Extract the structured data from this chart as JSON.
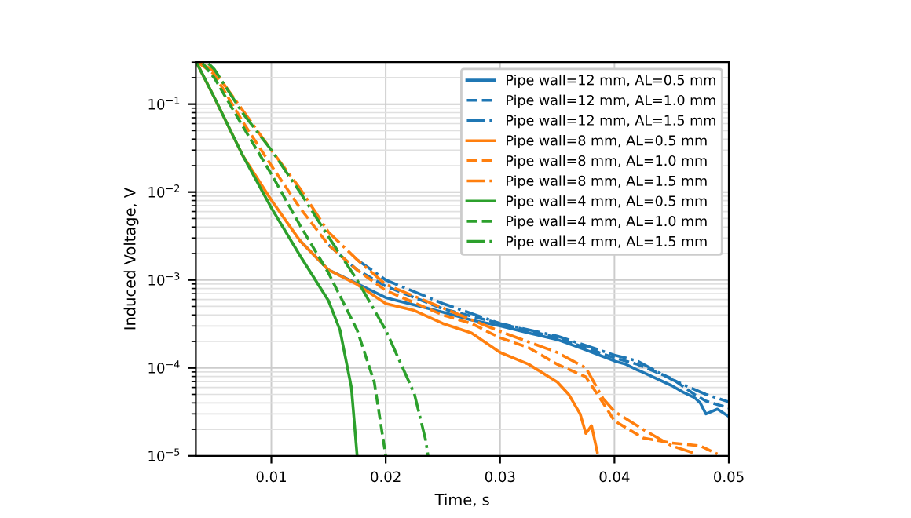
{
  "chart_data": {
    "type": "line",
    "xlabel": "Time, s",
    "ylabel": "Induced Voltage, V",
    "log": "y",
    "grid": true,
    "legend": "top right",
    "xlim": [
      0.0034,
      0.05
    ],
    "xticks": [
      0.01,
      0.02,
      0.03,
      0.04,
      0.05
    ],
    "ylim": [
      1e-05,
      0.3
    ],
    "yticks": [
      {
        "value": 1e-05,
        "label": "10$^{−5}$"
      },
      {
        "value": 0.0001,
        "label": "10$^{−4}$"
      },
      {
        "value": 0.001,
        "label": "10$^{−3}$"
      },
      {
        "value": 0.01,
        "label": "10$^{−2}$"
      },
      {
        "value": 0.1,
        "label": "10$^{−1}$"
      }
    ],
    "series": [
      {
        "name": "Pipe wall=12 mm, AL=0.5 mm",
        "color": "#1f77b4",
        "line_style": "solid",
        "x": [
          0.0125,
          0.015,
          0.0175,
          0.02,
          0.0225,
          0.025,
          0.0275,
          0.03,
          0.0325,
          0.035,
          0.0375,
          0.04,
          0.041,
          0.042,
          0.0425,
          0.045,
          0.046,
          0.047,
          0.0475,
          0.048,
          0.049,
          0.05
        ],
        "values": [
          0.0028,
          0.0013,
          0.00091,
          0.00063,
          0.00052,
          0.00043,
          0.00035,
          0.0003,
          0.00025,
          0.00021,
          0.00016,
          0.00012,
          0.00011,
          9.5e-05,
          8.9e-05,
          6.3e-05,
          5.3e-05,
          4.6e-05,
          4e-05,
          3e-05,
          3.4e-05,
          2.8e-05
        ]
      },
      {
        "name": "Pipe wall=12 mm, AL=1.0 mm",
        "color": "#1f77b4",
        "line_style": "dashed",
        "x": [
          0.015,
          0.0175,
          0.02,
          0.025,
          0.03,
          0.035,
          0.04,
          0.042,
          0.045,
          0.047,
          0.048,
          0.05
        ],
        "values": [
          0.0025,
          0.0013,
          0.00085,
          0.00047,
          0.00032,
          0.00022,
          0.00013,
          0.00011,
          7.6e-05,
          5e-05,
          4.2e-05,
          3.5e-05
        ]
      },
      {
        "name": "Pipe wall=12 mm, AL=1.5 mm",
        "color": "#1f77b4",
        "line_style": "dashdot",
        "x": [
          0.0175,
          0.02,
          0.025,
          0.03,
          0.035,
          0.04,
          0.042,
          0.045,
          0.048,
          0.05
        ],
        "values": [
          0.0017,
          0.001,
          0.00054,
          0.00032,
          0.00023,
          0.00014,
          0.00012,
          7.4e-05,
          5e-05,
          4.1e-05
        ]
      },
      {
        "name": "Pipe wall=8 mm, AL=0.5 mm",
        "color": "#ff7f0e",
        "line_style": "solid",
        "x": [
          0.0035,
          0.005,
          0.0075,
          0.01,
          0.0125,
          0.015,
          0.0175,
          0.02,
          0.0225,
          0.025,
          0.0275,
          0.03,
          0.0325,
          0.035,
          0.036,
          0.037,
          0.0375,
          0.038,
          0.0385
        ],
        "values": [
          0.29,
          0.12,
          0.026,
          0.0081,
          0.0028,
          0.0013,
          0.00089,
          0.00054,
          0.00045,
          0.00032,
          0.00025,
          0.00015,
          0.00011,
          6.9e-05,
          5e-05,
          3e-05,
          1.8e-05,
          2.2e-05,
          1.1e-05
        ]
      },
      {
        "name": "Pipe wall=8 mm, AL=1.0 mm",
        "color": "#ff7f0e",
        "line_style": "dashed",
        "x": [
          0.0037,
          0.005,
          0.0075,
          0.01,
          0.0125,
          0.015,
          0.0175,
          0.02,
          0.025,
          0.0275,
          0.03,
          0.0325,
          0.035,
          0.0375,
          0.039,
          0.04,
          0.0425,
          0.045,
          0.0475,
          0.049
        ],
        "values": [
          0.29,
          0.22,
          0.063,
          0.02,
          0.0066,
          0.0025,
          0.0013,
          0.00076,
          0.0004,
          0.00032,
          0.00022,
          0.00017,
          0.00011,
          7.9e-05,
          4e-05,
          2.5e-05,
          1.6e-05,
          1.4e-05,
          1.3e-05,
          1.05e-05
        ]
      },
      {
        "name": "Pipe wall=8 mm, AL=1.5 mm",
        "color": "#ff7f0e",
        "line_style": "dashdot",
        "x": [
          0.0038,
          0.005,
          0.0075,
          0.01,
          0.0125,
          0.015,
          0.0175,
          0.02,
          0.025,
          0.03,
          0.035,
          0.0375,
          0.039,
          0.04,
          0.0425,
          0.045,
          0.047
        ],
        "values": [
          0.29,
          0.24,
          0.085,
          0.03,
          0.011,
          0.0035,
          0.0017,
          0.00089,
          0.00048,
          0.00026,
          0.00015,
          0.0001,
          4.5e-05,
          3.2e-05,
          2e-05,
          1.3e-05,
          1.07e-05
        ]
      },
      {
        "name": "Pipe wall=4 mm, AL=0.5 mm",
        "color": "#2ca02c",
        "line_style": "solid",
        "x": [
          0.0035,
          0.005,
          0.0075,
          0.01,
          0.0125,
          0.015,
          0.016,
          0.017,
          0.0175
        ],
        "values": [
          0.29,
          0.12,
          0.026,
          0.0066,
          0.0019,
          0.00058,
          0.00027,
          6e-05,
          1e-05
        ]
      },
      {
        "name": "Pipe wall=4 mm, AL=1.0 mm",
        "color": "#2ca02c",
        "line_style": "dashed",
        "x": [
          0.004,
          0.005,
          0.0075,
          0.01,
          0.0125,
          0.015,
          0.0175,
          0.019,
          0.02
        ],
        "values": [
          0.29,
          0.2,
          0.056,
          0.016,
          0.0042,
          0.0012,
          0.00027,
          6.9e-05,
          1e-05
        ]
      },
      {
        "name": "Pipe wall=4 mm, AL=1.5 mm",
        "color": "#2ca02c",
        "line_style": "dashdot",
        "x": [
          0.0045,
          0.005,
          0.0075,
          0.01,
          0.0125,
          0.015,
          0.0175,
          0.02,
          0.0225,
          0.0235,
          0.0237
        ],
        "values": [
          0.29,
          0.25,
          0.079,
          0.03,
          0.01,
          0.0031,
          0.001,
          0.00027,
          5.1e-05,
          1.5e-05,
          1e-05
        ]
      }
    ]
  }
}
